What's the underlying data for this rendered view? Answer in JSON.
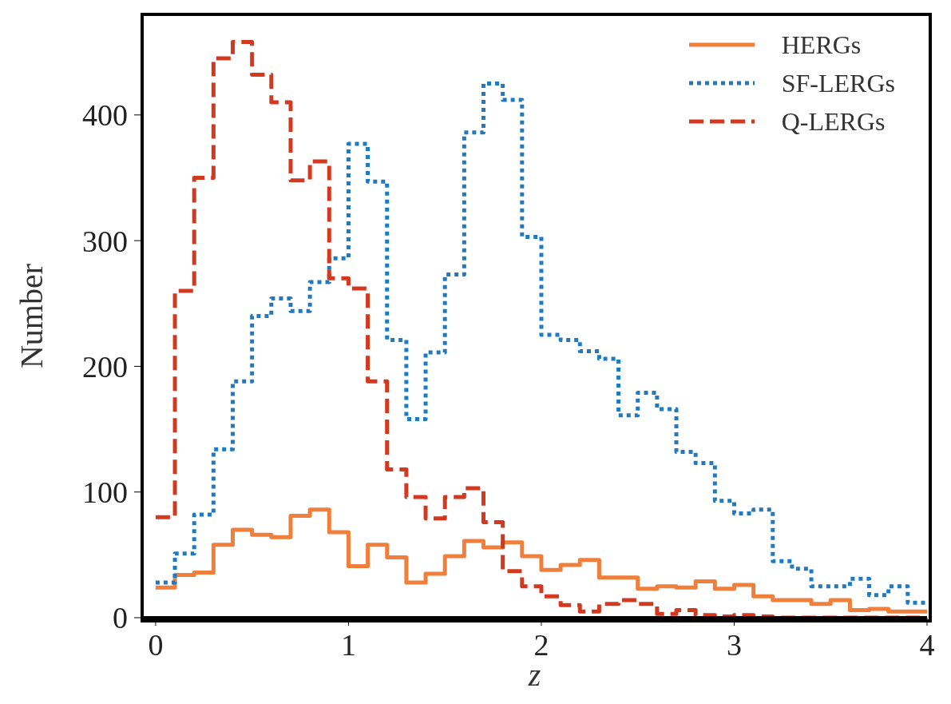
{
  "chart_data": {
    "type": "histogram",
    "xlabel": "z",
    "ylabel": "Number",
    "bins": [
      0,
      0.1,
      0.2,
      0.3,
      0.4,
      0.5,
      0.6,
      0.7,
      0.8,
      0.9,
      1.0,
      1.1,
      1.2,
      1.3,
      1.4,
      1.5,
      1.6,
      1.7,
      1.8,
      1.9,
      2.0,
      2.1,
      2.2,
      2.3,
      2.4,
      2.5,
      2.6,
      2.7,
      2.8,
      2.9,
      3.0,
      3.1,
      3.2,
      3.3,
      3.4,
      3.5,
      3.6,
      3.7,
      3.8,
      3.9,
      4.0
    ],
    "series": [
      {
        "name": "HERGs",
        "color": "#f07f3c",
        "line_style": "solid",
        "values": [
          24,
          34,
          36,
          58,
          70,
          66,
          64,
          81,
          86,
          68,
          41,
          58,
          48,
          28,
          35,
          49,
          61,
          56,
          60,
          49,
          38,
          42,
          46,
          32,
          32,
          23,
          25,
          24,
          29,
          23,
          26,
          17,
          14,
          14,
          11,
          14,
          6,
          7,
          5,
          5
        ]
      },
      {
        "name": "SF-LERGs",
        "color": "#1f7bc1",
        "line_style": "dotted",
        "values": [
          28,
          51,
          82,
          134,
          188,
          240,
          254,
          244,
          267,
          286,
          377,
          347,
          221,
          158,
          211,
          273,
          386,
          425,
          412,
          303,
          225,
          221,
          212,
          206,
          161,
          179,
          166,
          132,
          123,
          93,
          83,
          86,
          45,
          39,
          25,
          25,
          31,
          18,
          25,
          12
        ]
      },
      {
        "name": "Q-LERGs",
        "color": "#d2391f",
        "line_style": "dashed",
        "values": [
          80,
          260,
          350,
          445,
          458,
          432,
          410,
          348,
          363,
          270,
          262,
          188,
          118,
          96,
          79,
          96,
          103,
          76,
          37,
          25,
          17,
          10,
          5,
          11,
          14,
          11,
          3,
          6,
          2,
          1,
          2,
          1,
          0,
          0,
          0,
          0,
          0,
          0,
          0,
          0
        ]
      }
    ],
    "xlim": [
      -0.07,
      4
    ],
    "xticks": [
      0,
      1,
      2,
      3,
      4
    ],
    "ylim": [
      0,
      480
    ],
    "yticks": [
      0,
      100,
      200,
      300,
      400
    ],
    "grid": false,
    "legend": "top right"
  }
}
